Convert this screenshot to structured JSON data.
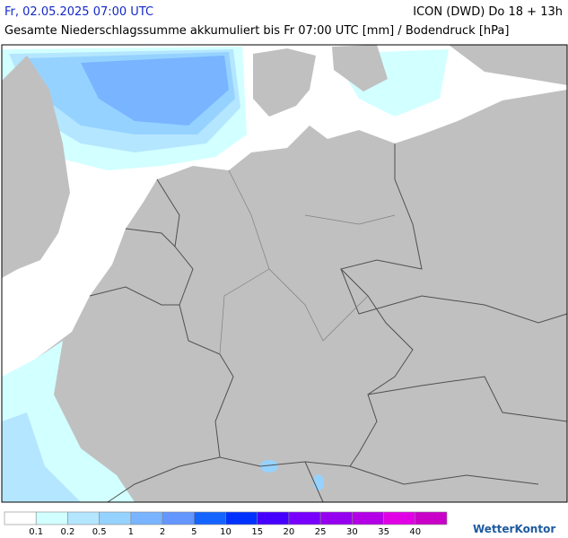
{
  "header": {
    "title": "Fr, 02.05.2025 07:00 UTC",
    "model": "ICON (DWD) Do 18 + 13h",
    "subtitle": "Gesamte Niederschlagssumme akkumuliert bis Fr 07:00 UTC [mm] / Bodendruck [hPa]"
  },
  "legend": {
    "labels": [
      0.1,
      0.2,
      0.5,
      1,
      2,
      5,
      10,
      15,
      20,
      25,
      30,
      35,
      40
    ],
    "colors": [
      "#ffffff",
      "#d2ffff",
      "#b4e6ff",
      "#96d2ff",
      "#78b4ff",
      "#6496ff",
      "#1464ff",
      "#0032ff",
      "#4600ff",
      "#7800ff",
      "#9600f0",
      "#b400e6",
      "#e100e6",
      "#c800c8"
    ]
  },
  "logo": "WetterKontor"
}
